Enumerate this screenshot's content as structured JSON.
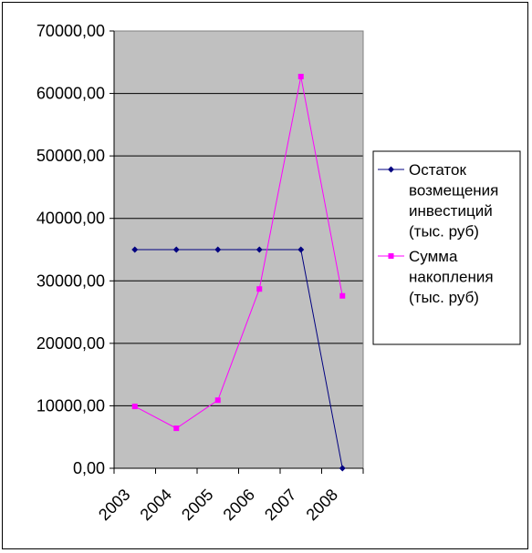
{
  "chart_data": {
    "type": "line",
    "categories": [
      "2003",
      "2004",
      "2005",
      "2006",
      "2007",
      "2008"
    ],
    "ylim": [
      0,
      70000
    ],
    "yticks": [
      "0,00",
      "10000,00",
      "20000,00",
      "30000,00",
      "40000,00",
      "50000,00",
      "60000,00",
      "70000,00"
    ],
    "grid": true,
    "plot_background": "#C0C0C0",
    "legend_position": "right",
    "series": [
      {
        "name": "Остаток возмещения инвестиций (тыс. руб)",
        "legend_lines": [
          "Остаток",
          "возмещения",
          "инвестиций",
          "(тыс. руб)"
        ],
        "color": "#000080",
        "marker": "diamond",
        "values": [
          35000,
          35000,
          35000,
          35000,
          35000,
          0
        ]
      },
      {
        "name": "Сумма накопления (тыс. руб)",
        "legend_lines": [
          "Сумма",
          "накопления",
          "(тыс. руб)"
        ],
        "color": "#FF00FF",
        "marker": "square",
        "values": [
          9900,
          6400,
          10900,
          28700,
          62700,
          27600
        ]
      }
    ]
  }
}
